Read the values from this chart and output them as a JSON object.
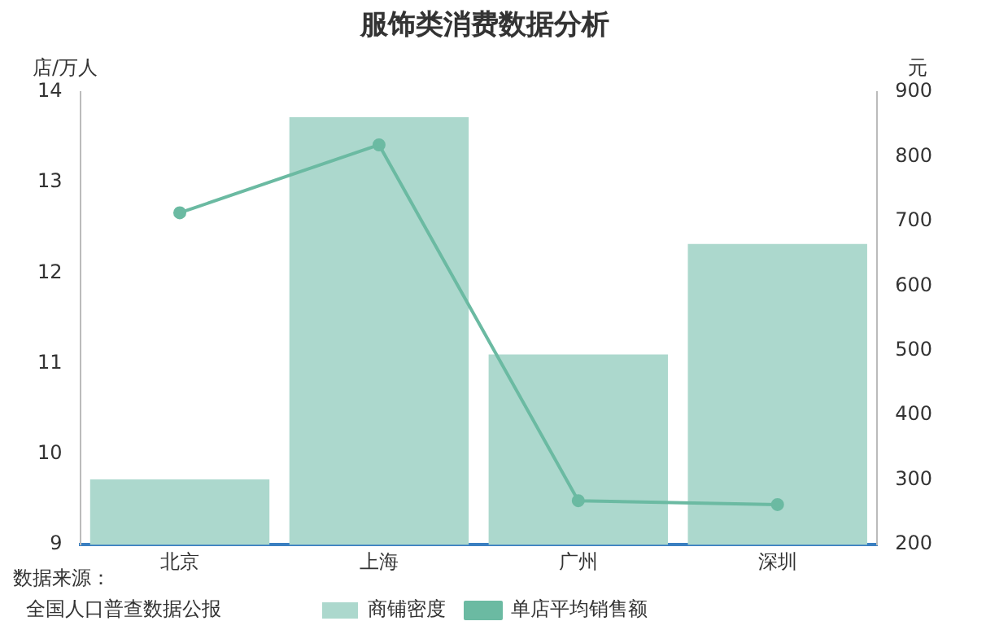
{
  "chart_data": {
    "type": "bar",
    "title": "服饰类消费数据分析",
    "ylabel": "店/万人",
    "y2label": "元",
    "categories": [
      "北京",
      "上海",
      "广州",
      "深圳"
    ],
    "series": [
      {
        "name": "商铺密度",
        "color": "#acd8cd",
        "values": [
          9.72,
          13.72,
          11.1,
          12.32
        ]
      },
      {
        "name": "单店平均销售额",
        "type": "line",
        "axis": "y2",
        "color": "#6bbaa2",
        "values": [
          713,
          818,
          268,
          262
        ]
      }
    ],
    "ylim": [
      9,
      14
    ],
    "yticks": [
      9,
      10,
      11,
      12,
      13,
      14
    ],
    "y2lim": [
      200,
      900
    ],
    "y2ticks": [
      200,
      300,
      400,
      500,
      600,
      700,
      800,
      900
    ],
    "grid": false,
    "legend": "bottom",
    "marker": "circle",
    "line_style": "solid",
    "annotations": [
      "数据来源：",
      "全国人口普查数据公报"
    ]
  }
}
